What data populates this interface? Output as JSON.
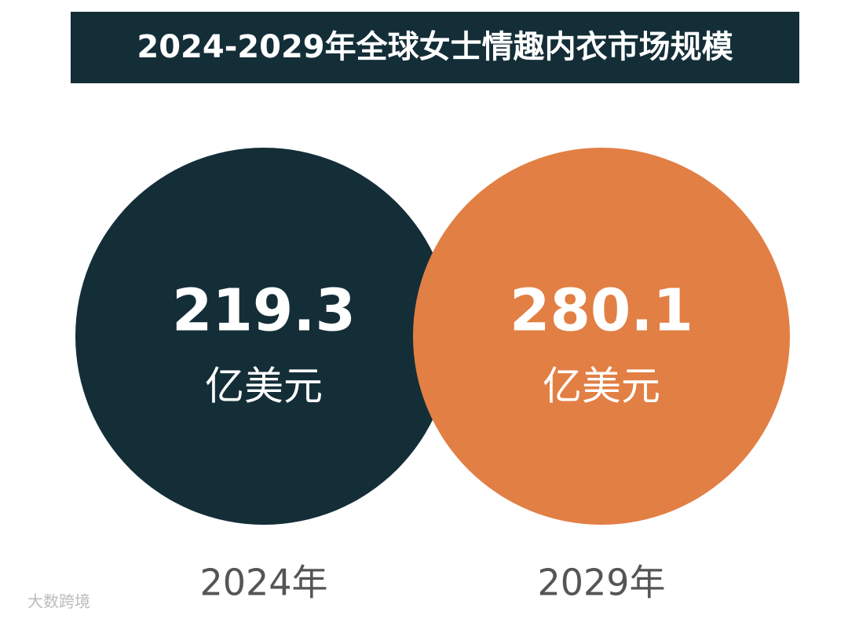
{
  "header": {
    "title": "2024-2029年全球女士情趣内衣市场规模"
  },
  "items": [
    {
      "value": 219.3,
      "unit": "亿美元",
      "year": "2024年",
      "color": "#142e38"
    },
    {
      "value": 280.1,
      "unit": "亿美元",
      "year": "2029年",
      "color": "#e27f44"
    }
  ],
  "watermark": "大数跨境"
}
